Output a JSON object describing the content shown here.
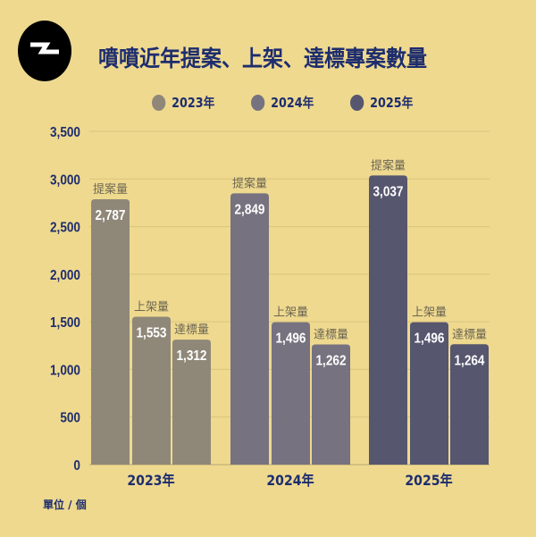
{
  "title": "噴噴近年提案、上架、達標專案數量",
  "unit_label": "單位 / 個",
  "chart_data": {
    "type": "bar",
    "title": "噴噴近年提案、上架、達標專案數量",
    "categories": [
      "2023年",
      "2024年",
      "2025年"
    ],
    "bar_labels": [
      "提案量",
      "上架量",
      "達標量"
    ],
    "series": [
      {
        "name": "2023年",
        "color": "#8f8879",
        "values": [
          2787,
          1553,
          1312
        ]
      },
      {
        "name": "2024年",
        "color": "#76727f",
        "values": [
          2849,
          1496,
          1262
        ]
      },
      {
        "name": "2025年",
        "color": "#56566f",
        "values": [
          3037,
          1496,
          1264
        ]
      }
    ],
    "yticks": [
      "0",
      "500",
      "1,000",
      "1,500",
      "2,000",
      "2,500",
      "3,000",
      "3,500"
    ],
    "ylim": [
      0,
      3500
    ],
    "grid": true,
    "legend": "top-center"
  }
}
